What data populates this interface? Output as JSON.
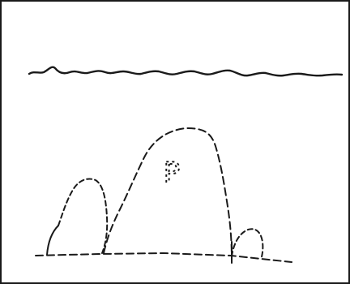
{
  "figure": {
    "letter_label": "P"
  }
}
